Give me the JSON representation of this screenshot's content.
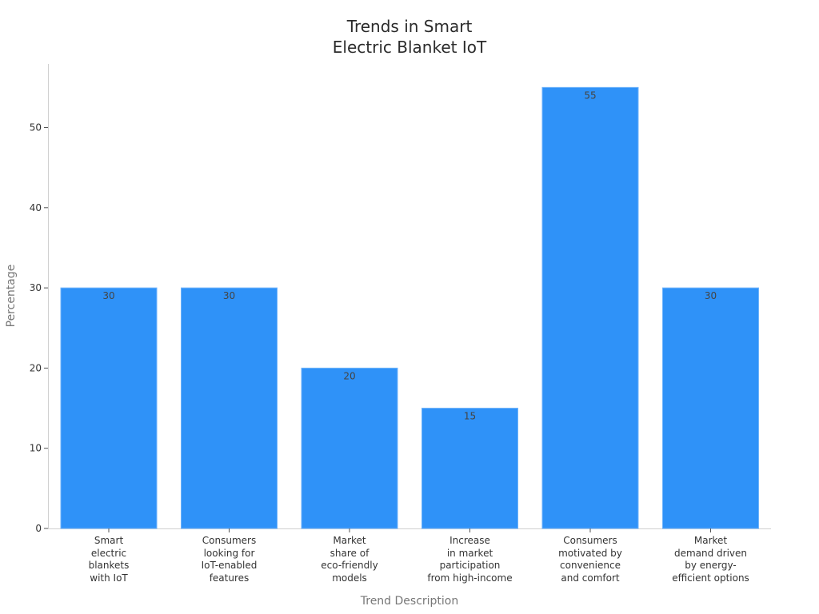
{
  "chart_data": {
    "type": "bar",
    "title": "Trends in Smart Electric Blanket IoT",
    "title_lines": [
      "Trends in Smart",
      "Electric Blanket IoT"
    ],
    "xlabel": "Trend Description",
    "ylabel": "Percentage",
    "ylim": [
      0,
      58
    ],
    "yticks": [
      0,
      10,
      20,
      30,
      40,
      50
    ],
    "grid": false,
    "legend": null,
    "bar_color": "#2f92f8",
    "categories": [
      "Smart electric blankets with IoT",
      "Consumers looking for IoT-enabled features",
      "Market share of eco-friendly models",
      "Increase in market participation from high-income",
      "Consumers motivated by convenience and comfort",
      "Market demand driven by energy-efficient options"
    ],
    "category_lines": [
      [
        "Smart",
        "electric",
        "blankets",
        "with IoT"
      ],
      [
        "Consumers",
        "looking for",
        "IoT-enabled",
        "features"
      ],
      [
        "Market",
        "share of",
        "eco-friendly",
        "models"
      ],
      [
        "Increase",
        "in market",
        "participation",
        "from high-income"
      ],
      [
        "Consumers",
        "motivated by",
        "convenience",
        "and comfort"
      ],
      [
        "Market",
        "demand driven",
        "by energy-",
        "efficient options"
      ]
    ],
    "values": [
      30,
      30,
      20,
      15,
      55,
      30
    ],
    "data_labels": [
      "30",
      "30",
      "20",
      "15",
      "55",
      "30"
    ]
  }
}
